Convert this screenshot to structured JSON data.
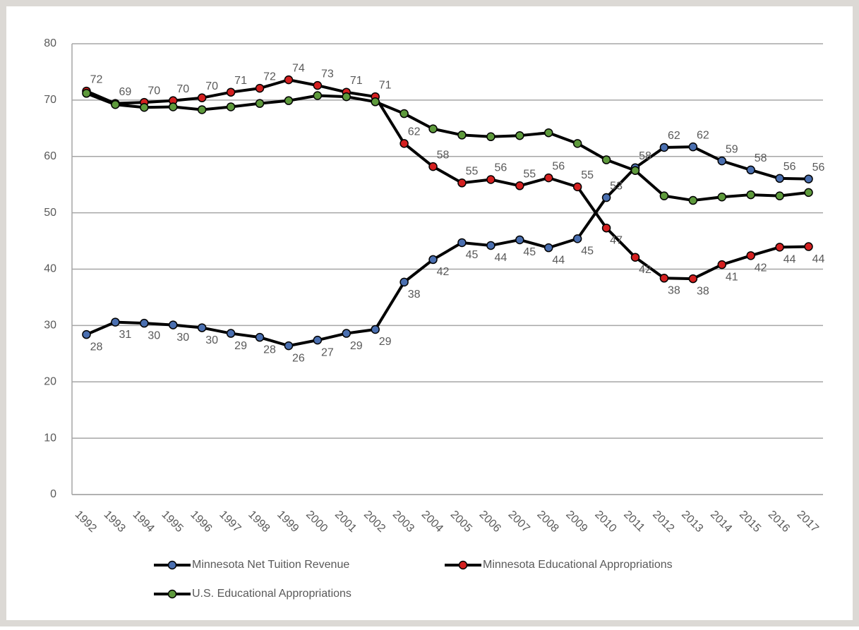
{
  "chart_data": {
    "type": "line",
    "categories": [
      "1992",
      "1993",
      "1994",
      "1995",
      "1996",
      "1997",
      "1998",
      "1999",
      "2000",
      "2001",
      "2002",
      "2003",
      "2004",
      "2005",
      "2006",
      "2007",
      "2008",
      "2009",
      "2010",
      "2011",
      "2012",
      "2013",
      "2014",
      "2015",
      "2016",
      "2017"
    ],
    "series": [
      {
        "name": "Minnesota Net Tuition Revenue",
        "color": "#4a6fb0",
        "values": [
          28.4,
          30.6,
          30.4,
          30.1,
          29.6,
          28.6,
          27.9,
          26.4,
          27.4,
          28.6,
          29.3,
          37.7,
          41.7,
          44.7,
          44.2,
          45.2,
          43.8,
          45.4,
          52.7,
          58.0,
          61.6,
          61.7,
          59.2,
          57.6,
          56.1,
          56.0
        ],
        "value_labels": [
          "28",
          "31",
          "30",
          "30",
          "30",
          "29",
          "28",
          "26",
          "27",
          "29",
          "29",
          "38",
          "42",
          "45",
          "44",
          "45",
          "44",
          "45",
          "53",
          "58",
          "62",
          "62",
          "59",
          "58",
          "56",
          "56"
        ]
      },
      {
        "name": "Minnesota Educational Appropriations",
        "color": "#d42020",
        "values": [
          71.6,
          69.4,
          69.6,
          69.9,
          70.4,
          71.4,
          72.1,
          73.6,
          72.6,
          71.4,
          70.6,
          62.3,
          58.2,
          55.3,
          55.9,
          54.8,
          56.2,
          54.6,
          47.3,
          42.1,
          38.4,
          38.3,
          40.8,
          42.4,
          43.9,
          44.0
        ],
        "value_labels": [
          "72",
          "69",
          "70",
          "70",
          "70",
          "71",
          "72",
          "74",
          "73",
          "71",
          "71",
          "62",
          "58",
          "55",
          "56",
          "55",
          "56",
          "55",
          "47",
          "42",
          "38",
          "38",
          "41",
          "42",
          "44",
          "44"
        ]
      },
      {
        "name": "U.S. Educational Appropriations",
        "color": "#5e9a3c",
        "values": [
          71.2,
          69.2,
          68.7,
          68.8,
          68.3,
          68.8,
          69.4,
          69.9,
          70.8,
          70.6,
          69.7,
          67.6,
          64.9,
          63.8,
          63.5,
          63.7,
          64.2,
          62.3,
          59.4,
          57.5,
          53.0,
          52.2,
          52.8,
          53.2,
          53.0,
          53.6
        ]
      }
    ],
    "ylim": [
      0,
      80
    ],
    "yticks": [
      0,
      10,
      20,
      30,
      40,
      50,
      60,
      70,
      80
    ],
    "grid": true,
    "legend": "bottom"
  }
}
